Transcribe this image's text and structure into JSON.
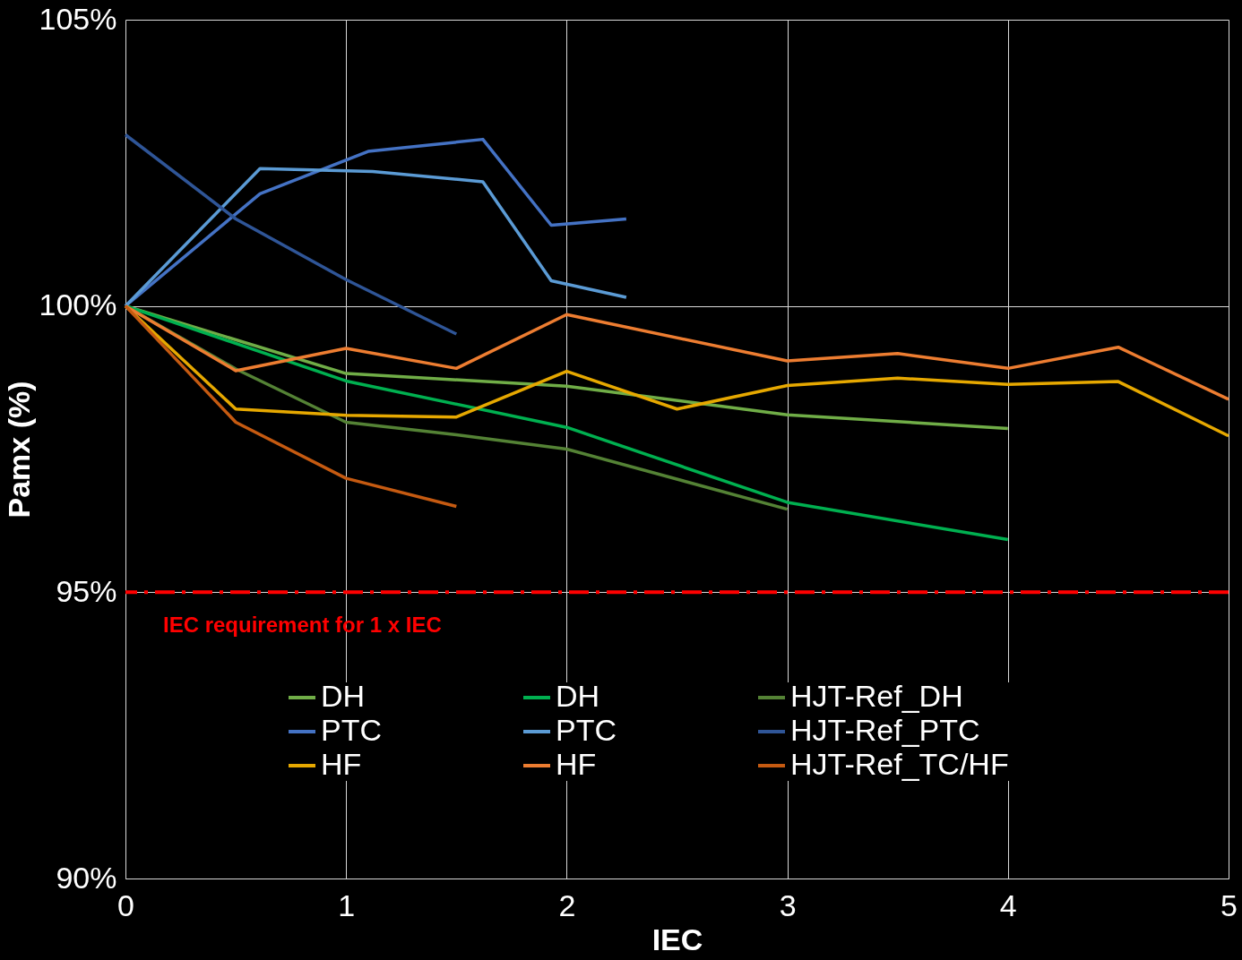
{
  "chart_data": {
    "type": "line",
    "xlabel": "IEC",
    "ylabel": "Pamx (%)",
    "xlim": [
      0,
      5
    ],
    "xticks": [
      0,
      1,
      2,
      3,
      4,
      5
    ],
    "ylim": [
      90,
      105
    ],
    "yticks": [
      {
        "value": 90,
        "label": "90%"
      },
      {
        "value": 95,
        "label": "95%"
      },
      {
        "value": 100,
        "label": "100%"
      },
      {
        "value": 105,
        "label": "105%"
      }
    ],
    "grid": true,
    "legend": "bottom",
    "marker": "none",
    "line_style": "solid",
    "ref_lines": [
      {
        "axis": "y",
        "value": 95,
        "label": "IEC requirement for 1 x IEC",
        "color": "#ff0000",
        "line_style": "dashed"
      }
    ],
    "series": [
      {
        "name": "DH",
        "color": "#70ad47",
        "x": [
          0,
          1,
          2,
          3,
          4
        ],
        "values": [
          100,
          98.82,
          98.6,
          98.1,
          97.86
        ]
      },
      {
        "name": "DH",
        "color": "#00b050",
        "x": [
          0,
          1,
          2,
          3,
          4
        ],
        "values": [
          100,
          98.69,
          97.88,
          96.57,
          95.92
        ]
      },
      {
        "name": "HJT-Ref_DH",
        "color": "#548235",
        "x": [
          0,
          0.5,
          1,
          1.5,
          2,
          3
        ],
        "values": [
          100,
          98.9,
          97.97,
          97.75,
          97.5,
          96.45
        ]
      },
      {
        "name": "PTC",
        "color": "#4472c4",
        "x": [
          0,
          0.61,
          1.1,
          1.62,
          1.93,
          2.27
        ],
        "values": [
          100,
          101.96,
          102.7,
          102.91,
          101.41,
          101.52
        ]
      },
      {
        "name": "PTC",
        "color": "#5b9bd5",
        "x": [
          0,
          0.61,
          1.12,
          1.62,
          1.93,
          2.27
        ],
        "values": [
          100,
          102.4,
          102.35,
          102.17,
          100.44,
          100.15
        ]
      },
      {
        "name": "HJT-Ref_PTC",
        "color": "#2f5597",
        "x": [
          0,
          0.5,
          1,
          1.5
        ],
        "values": [
          102.99,
          101.52,
          100.46,
          99.51
        ]
      },
      {
        "name": "HF",
        "color": "#e6a800",
        "x": [
          0,
          0.5,
          1,
          1.5,
          2,
          2.5,
          3,
          3.5,
          4,
          4.5,
          5
        ],
        "values": [
          100,
          98.2,
          98.09,
          98.06,
          98.86,
          98.2,
          98.61,
          98.74,
          98.63,
          98.68,
          97.73
        ]
      },
      {
        "name": "HF",
        "color": "#ed7d31",
        "x": [
          0,
          0.5,
          1,
          1.5,
          2,
          3,
          3.5,
          4,
          4.5,
          5
        ],
        "values": [
          100,
          98.87,
          99.26,
          98.91,
          99.85,
          99.04,
          99.17,
          98.91,
          99.28,
          98.37
        ]
      },
      {
        "name": "HJT-Ref_TC/HF",
        "color": "#c55a11",
        "x": [
          0,
          0.5,
          1,
          1.5
        ],
        "values": [
          100,
          97.97,
          96.99,
          96.5
        ]
      }
    ]
  }
}
